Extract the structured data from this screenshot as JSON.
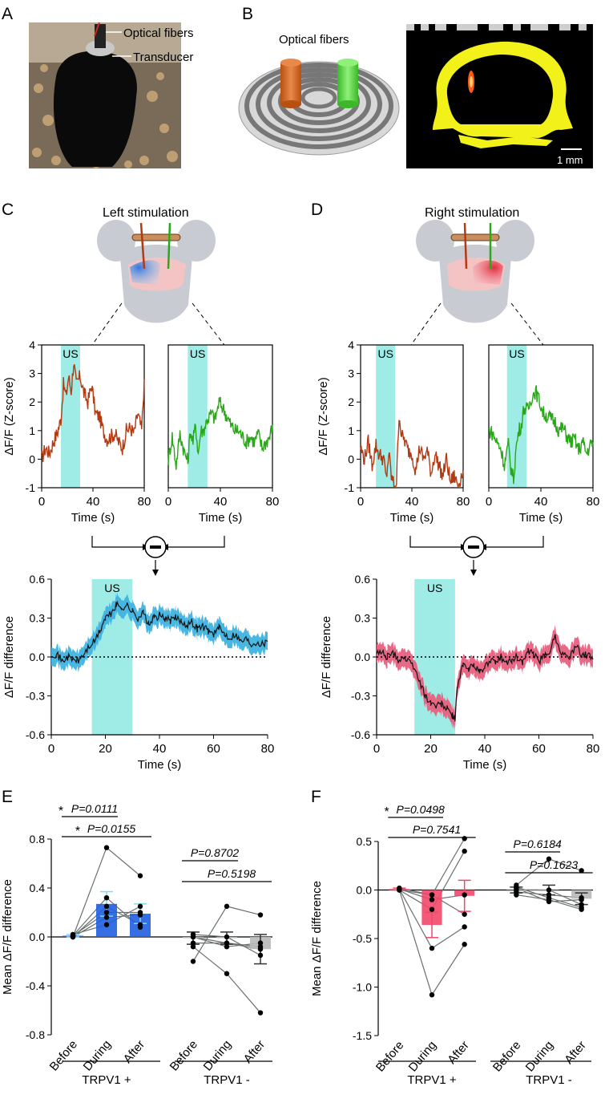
{
  "panel_letters": {
    "a": "A",
    "b": "B",
    "c": "C",
    "d": "D",
    "e": "E",
    "f": "F"
  },
  "labels": {
    "optical_fibers_a": "Optical fibers",
    "transducer": "Transducer",
    "optical_fibers_b": "Optical fibers",
    "scale_bar": "1 mm",
    "left_stim": "Left stimulation",
    "right_stim": "Right stimulation",
    "us": "US",
    "ylabel_z": "ΔF/F (Z-score)",
    "ylabel_diff": "ΔF/F difference",
    "ylabel_mean": "Mean ΔF/F difference",
    "xlabel_time": "Time (s)",
    "star": "*"
  },
  "colors": {
    "orange": "#b33a12",
    "green": "#2aa81a",
    "cyan": "#8ee8e0",
    "blue": "#1f5fe0",
    "blue_band": "#3fb3e0",
    "red": "#f2476a",
    "red_band": "#e8607e",
    "gray": "#b8b8b8",
    "fiber_orange": "#d2691e",
    "fiber_green": "#5fdc4a",
    "skull": "#f2f21a"
  },
  "chart_data": [
    {
      "id": "C-left-orange",
      "type": "line",
      "xlim": [
        0,
        80
      ],
      "ylim": [
        -1,
        4
      ],
      "xticks": [
        "0",
        "40",
        "80"
      ],
      "yticks": [
        "-1",
        "0",
        "1",
        "2",
        "3",
        "4"
      ],
      "xlabel": "Time (s)",
      "ylabel": "ΔF/F (Z-score)",
      "shade": [
        15,
        30
      ],
      "shade_label": "US",
      "series": [
        {
          "name": "left trace",
          "x": [
            0,
            3,
            6,
            9,
            12,
            15,
            17,
            19,
            21,
            23,
            25,
            27,
            30,
            33,
            36,
            39,
            42,
            45,
            48,
            51,
            54,
            57,
            60,
            63,
            66,
            69,
            72,
            75,
            78,
            80
          ],
          "y": [
            0,
            0.4,
            0.2,
            0.6,
            0.9,
            1.4,
            2.6,
            2.2,
            2.9,
            2.4,
            3.4,
            2.6,
            2.9,
            2.3,
            2.0,
            2.6,
            1.6,
            1.5,
            1.0,
            0.7,
            0.8,
            0.9,
            0.6,
            0.4,
            1.0,
            1.1,
            0.9,
            1.6,
            1.0,
            2.8
          ]
        }
      ]
    },
    {
      "id": "C-left-green",
      "type": "line",
      "xlim": [
        0,
        80
      ],
      "ylim": [
        -1,
        4
      ],
      "xticks": [
        "0",
        "40",
        "80"
      ],
      "yticks": [],
      "shade": [
        15,
        30
      ],
      "shade_label": "US",
      "xlabel": "Time (s)",
      "series": [
        {
          "name": "left trace green",
          "x": [
            0,
            3,
            6,
            9,
            12,
            15,
            17,
            19,
            21,
            23,
            25,
            27,
            30,
            33,
            36,
            39,
            42,
            45,
            48,
            51,
            54,
            57,
            60,
            63,
            66,
            69,
            72,
            75,
            78,
            80
          ],
          "y": [
            0,
            0.8,
            -0.2,
            0.9,
            0.3,
            -0.1,
            1.0,
            0.6,
            1.2,
            0.2,
            1.0,
            1.0,
            1.4,
            1.6,
            1.4,
            2.0,
            1.8,
            1.5,
            1.2,
            1.0,
            1.0,
            0.8,
            0.6,
            0.8,
            0.6,
            0.9,
            0.4,
            0.6,
            0.8,
            1.2
          ]
        }
      ]
    },
    {
      "id": "D-right-orange",
      "type": "line",
      "xlim": [
        0,
        80
      ],
      "ylim": [
        -1,
        4
      ],
      "xticks": [
        "0",
        "40",
        "80"
      ],
      "yticks": [
        "-1",
        "0",
        "1",
        "2",
        "3",
        "4"
      ],
      "xlabel": "Time (s)",
      "ylabel": "ΔF/F (Z-score)",
      "shade": [
        12,
        27
      ],
      "shade_label": "US",
      "series": [
        {
          "name": "right trace",
          "x": [
            0,
            3,
            6,
            9,
            12,
            14,
            16,
            18,
            20,
            22,
            24,
            26,
            28,
            30,
            32,
            34,
            37,
            40,
            43,
            46,
            49,
            52,
            55,
            58,
            61,
            64,
            67,
            70,
            73,
            76,
            80
          ],
          "y": [
            0.4,
            0,
            0.6,
            -0.2,
            0.5,
            0.2,
            0.1,
            0,
            -0.7,
            0.2,
            -0.6,
            -0.9,
            -0.8,
            1.6,
            0.8,
            0.7,
            0.3,
            0.2,
            -0.4,
            0.4,
            0,
            0.3,
            -0.5,
            0.2,
            -0.2,
            -0.6,
            0,
            -0.8,
            -0.6,
            -0.9,
            -0.4
          ]
        }
      ]
    },
    {
      "id": "D-right-green",
      "type": "line",
      "xlim": [
        0,
        80
      ],
      "ylim": [
        -1,
        4
      ],
      "xticks": [
        "0",
        "40",
        "80"
      ],
      "yticks": [],
      "shade": [
        14,
        29
      ],
      "shade_label": "US",
      "xlabel": "Time (s)",
      "series": [
        {
          "name": "right trace green",
          "x": [
            0,
            3,
            6,
            9,
            12,
            15,
            17,
            19,
            21,
            23,
            25,
            27,
            30,
            33,
            36,
            39,
            42,
            45,
            48,
            51,
            54,
            57,
            60,
            63,
            66,
            69,
            72,
            75,
            78,
            80
          ],
          "y": [
            1.0,
            0.9,
            0.6,
            0.4,
            -0.2,
            0.5,
            -0.3,
            -0.7,
            0.4,
            1.0,
            1.2,
            1.8,
            1.7,
            2.2,
            2.4,
            2.0,
            1.6,
            1.5,
            1.4,
            1.3,
            1.0,
            1.1,
            0.8,
            0.6,
            0.7,
            0.3,
            0.6,
            0.2,
            0.5,
            0.6
          ]
        }
      ]
    },
    {
      "id": "C-diff",
      "type": "area",
      "xlim": [
        0,
        80
      ],
      "ylim": [
        -0.6,
        0.6
      ],
      "xticks": [
        "0",
        "20",
        "40",
        "60",
        "80"
      ],
      "yticks": [
        "-0.6",
        "-0.3",
        "0.0",
        "0.3",
        "0.6"
      ],
      "xlabel": "Time (s)",
      "ylabel": "ΔF/F difference",
      "shade": [
        15,
        30
      ],
      "shade_label": "US",
      "series": [
        {
          "name": "mean difference",
          "x": [
            0,
            2,
            4,
            6,
            8,
            10,
            12,
            14,
            16,
            18,
            20,
            22,
            24,
            26,
            28,
            30,
            32,
            34,
            36,
            38,
            40,
            42,
            44,
            46,
            48,
            50,
            52,
            54,
            56,
            58,
            60,
            62,
            64,
            66,
            68,
            70,
            72,
            74,
            76,
            78,
            80
          ],
          "y": [
            0.03,
            0.02,
            -0.03,
            0.0,
            -0.02,
            -0.03,
            0.02,
            0.08,
            0.12,
            0.2,
            0.3,
            0.33,
            0.4,
            0.38,
            0.4,
            0.35,
            0.3,
            0.34,
            0.25,
            0.3,
            0.32,
            0.3,
            0.28,
            0.3,
            0.28,
            0.25,
            0.27,
            0.22,
            0.24,
            0.2,
            0.18,
            0.22,
            0.18,
            0.15,
            0.18,
            0.12,
            0.14,
            0.1,
            0.12,
            0.1,
            0.12
          ],
          "sem": 0.07
        }
      ]
    },
    {
      "id": "D-diff",
      "type": "area",
      "xlim": [
        0,
        80
      ],
      "ylim": [
        -0.6,
        0.6
      ],
      "xticks": [
        "0",
        "20",
        "40",
        "60",
        "80"
      ],
      "yticks": [
        "-0.6",
        "-0.3",
        "0.0",
        "0.3",
        "0.6"
      ],
      "xlabel": "Time (s)",
      "ylabel": "ΔF/F difference",
      "shade": [
        14,
        29
      ],
      "shade_label": "US",
      "series": [
        {
          "name": "mean difference",
          "x": [
            0,
            2,
            4,
            6,
            8,
            10,
            12,
            14,
            16,
            18,
            20,
            22,
            24,
            26,
            28,
            29,
            30,
            32,
            34,
            36,
            38,
            40,
            42,
            44,
            46,
            48,
            50,
            52,
            54,
            56,
            58,
            60,
            62,
            64,
            66,
            68,
            70,
            72,
            74,
            76,
            78,
            80
          ],
          "y": [
            0.02,
            0.04,
            0.0,
            0.03,
            -0.02,
            0.0,
            -0.04,
            -0.08,
            -0.2,
            -0.3,
            -0.35,
            -0.38,
            -0.36,
            -0.4,
            -0.45,
            -0.48,
            -0.2,
            -0.06,
            -0.1,
            -0.05,
            -0.12,
            -0.08,
            -0.02,
            -0.06,
            0.0,
            -0.05,
            -0.02,
            0.0,
            -0.04,
            0.04,
            0.02,
            -0.03,
            0.0,
            0.05,
            0.16,
            0.05,
            0.0,
            0.02,
            0.08,
            0.0,
            0.02,
            -0.02
          ],
          "sem": 0.07
        }
      ]
    },
    {
      "id": "E",
      "type": "bar",
      "ylim": [
        -0.8,
        0.8
      ],
      "yticks": [
        "-0.8",
        "-0.4",
        "0.0",
        "0.4",
        "0.8"
      ],
      "ylabel": "Mean ΔF/F difference",
      "categories": [
        "Before",
        "During",
        "After",
        "Before",
        "During",
        "After"
      ],
      "groups": [
        "TRPV1 +",
        "TRPV1 -"
      ],
      "values": [
        0.01,
        0.27,
        0.19,
        -0.01,
        -0.01,
        -0.1
      ],
      "errors": [
        0.01,
        0.1,
        0.08,
        0.05,
        0.05,
        0.12
      ],
      "points": [
        [
          0.0,
          0.0,
          0.01,
          0.02,
          0.01,
          0.0
        ],
        [
          0.73,
          0.25,
          0.2,
          0.1,
          0.32,
          0.16
        ],
        [
          0.5,
          0.1,
          0.2,
          0.25,
          0.08,
          0.18
        ],
        [
          -0.2,
          -0.08,
          0.0,
          0.02,
          -0.05,
          0.0
        ],
        [
          0.25,
          -0.3,
          -0.08,
          0.0,
          -0.05,
          -0.05
        ],
        [
          0.18,
          -0.62,
          -0.05,
          -0.15,
          -0.1,
          -0.08
        ]
      ],
      "bar_colors": [
        "#1f5fe0",
        "#1f5fe0",
        "#1f5fe0",
        "#b8b8b8",
        "#b8b8b8",
        "#b8b8b8"
      ],
      "annotations": [
        {
          "text": "P=0.0111",
          "star": true
        },
        {
          "text": "P=0.0155",
          "star": true
        },
        {
          "text": "P=0.8702",
          "star": false
        },
        {
          "text": "P=0.5198",
          "star": false
        }
      ]
    },
    {
      "id": "F",
      "type": "bar",
      "ylim": [
        -1.5,
        0.5
      ],
      "yticks": [
        "-1.5",
        "-1.0",
        "-0.5",
        "0.0",
        "0.5"
      ],
      "ylabel": "Mean ΔF/F difference",
      "categories": [
        "Before",
        "During",
        "After",
        "Before",
        "During",
        "After"
      ],
      "groups": [
        "TRPV1 +",
        "TRPV1 -"
      ],
      "values": [
        0.01,
        -0.36,
        -0.06,
        0.0,
        0.0,
        -0.09
      ],
      "errors": [
        0.01,
        0.13,
        0.16,
        0.03,
        0.05,
        0.06
      ],
      "points": [
        [
          0.02,
          0.0,
          0.01,
          0.0,
          0.0,
          0.01
        ],
        [
          -0.05,
          -1.08,
          -0.6,
          -0.2,
          -0.05,
          -0.1
        ],
        [
          0.53,
          -0.56,
          -0.38,
          0.4,
          -0.25,
          -0.05
        ],
        [
          0.05,
          -0.05,
          0.02,
          0.0,
          -0.02,
          0.03
        ],
        [
          0.32,
          -0.1,
          -0.12,
          0.0,
          -0.05,
          -0.08
        ],
        [
          0.2,
          -0.2,
          -0.1,
          -0.15,
          -0.08,
          -0.18
        ]
      ],
      "bar_colors": [
        "#f2476a",
        "#f2476a",
        "#f2476a",
        "#b8b8b8",
        "#b8b8b8",
        "#b8b8b8"
      ],
      "annotations": [
        {
          "text": "P=0.0498",
          "star": true
        },
        {
          "text": "P=0.7541",
          "star": false
        },
        {
          "text": "P=0.6184",
          "star": false
        },
        {
          "text": "P=0.1623",
          "star": false
        }
      ]
    }
  ]
}
